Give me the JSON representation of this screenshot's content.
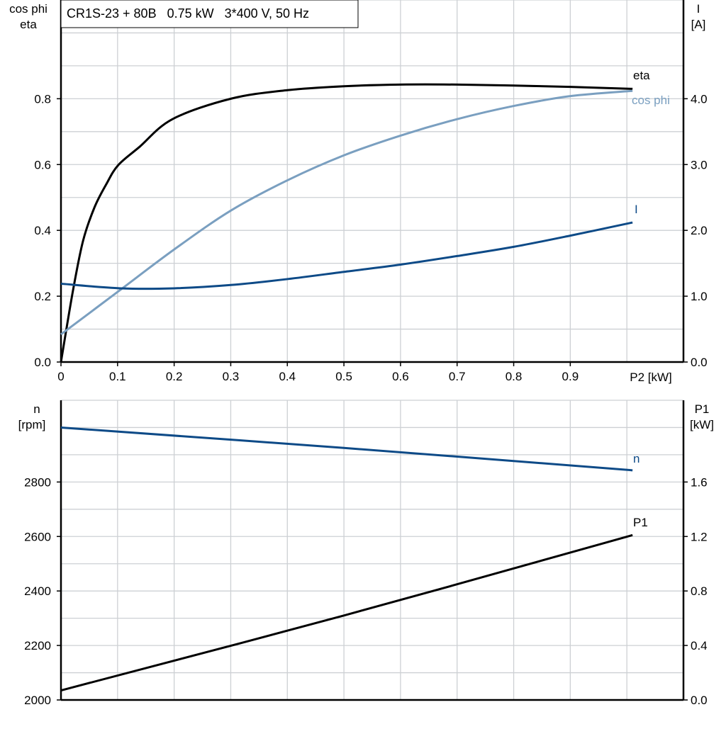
{
  "chart_data": [
    {
      "type": "line",
      "title": "CR1S-23 + 80B   0.75 kW   3*400 V, 50 Hz",
      "xlabel": "P2 [kW]",
      "ylabel_left": [
        "cos phi",
        "eta"
      ],
      "ylabel_right": [
        "I",
        "[A]"
      ],
      "xlim": [
        0,
        1.1
      ],
      "ylim_left": [
        0,
        1.1
      ],
      "ylim_right": [
        0,
        5.5
      ],
      "x_ticks": [
        "0",
        "0.1",
        "0.2",
        "0.3",
        "0.4",
        "0.5",
        "0.6",
        "0.7",
        "0.8",
        "0.9"
      ],
      "y_ticks_left": [
        "0.0",
        "0.2",
        "0.4",
        "0.6",
        "0.8"
      ],
      "y_ticks_right": [
        "0.0",
        "1.0",
        "2.0",
        "3.0",
        "4.0"
      ],
      "grid": true,
      "series": [
        {
          "name": "eta",
          "axis": "left",
          "color": "#000000",
          "x": [
            0,
            0.021,
            0.039,
            0.059,
            0.08,
            0.101,
            0.139,
            0.197,
            0.3,
            0.4,
            0.5,
            0.6,
            0.7,
            0.8,
            0.9,
            1.01
          ],
          "y": [
            0,
            0.215,
            0.368,
            0.469,
            0.54,
            0.598,
            0.654,
            0.738,
            0.8,
            0.826,
            0.838,
            0.843,
            0.843,
            0.84,
            0.836,
            0.83
          ]
        },
        {
          "name": "cos phi",
          "axis": "left",
          "color": "#7a9fc0",
          "x": [
            0,
            0.1,
            0.2,
            0.3,
            0.4,
            0.5,
            0.6,
            0.7,
            0.8,
            0.9,
            1.01
          ],
          "y": [
            0.084,
            0.213,
            0.342,
            0.46,
            0.552,
            0.628,
            0.688,
            0.738,
            0.778,
            0.808,
            0.824
          ]
        },
        {
          "name": "I",
          "axis": "right",
          "color": "#0d4a87",
          "x": [
            0,
            0.105,
            0.2,
            0.3,
            0.4,
            0.5,
            0.6,
            0.7,
            0.8,
            0.9,
            1.01
          ],
          "y": [
            1.19,
            1.12,
            1.12,
            1.17,
            1.26,
            1.37,
            1.48,
            1.61,
            1.75,
            1.92,
            2.12
          ]
        }
      ]
    },
    {
      "type": "line",
      "ylabel_left": [
        "n",
        "[rpm]"
      ],
      "ylabel_right": [
        "P1",
        "[kW]"
      ],
      "xlim": [
        0,
        1.1
      ],
      "ylim_left": [
        2000,
        3100
      ],
      "ylim_right": [
        0,
        2.2
      ],
      "y_ticks_left": [
        "2000",
        "2200",
        "2400",
        "2600",
        "2800"
      ],
      "y_ticks_right": [
        "0.0",
        "0.4",
        "0.8",
        "1.2",
        "1.6"
      ],
      "grid": true,
      "series": [
        {
          "name": "n",
          "axis": "left",
          "color": "#0d4a87",
          "x": [
            0,
            0.5,
            1.01
          ],
          "y": [
            3000,
            2925,
            2843
          ]
        },
        {
          "name": "P1",
          "axis": "right",
          "color": "#000000",
          "x": [
            0,
            0.5,
            1.01
          ],
          "y": [
            0.07,
            0.62,
            1.21
          ]
        }
      ]
    }
  ]
}
